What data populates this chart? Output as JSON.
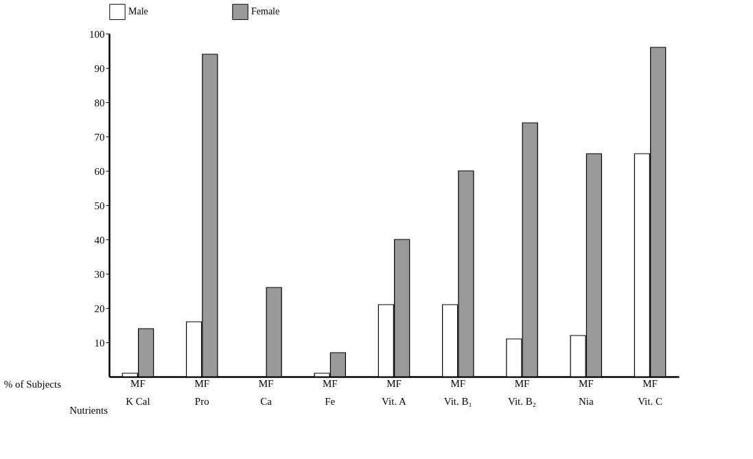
{
  "chart_data": {
    "type": "bar",
    "ylabel": "% of Subjects",
    "xlabel": "Nutrients",
    "categories": [
      "MF\nK Cal",
      "MF\nPro",
      "MF\nCa",
      "MF\nFe",
      "MF\nVit. A",
      "MF\nVit. B₁",
      "MF\nVit. B₂",
      "MF\nNia",
      "MF\nVit. C"
    ],
    "series": [
      {
        "name": "Male",
        "color": "#ffffff",
        "values": [
          1,
          16,
          null,
          1,
          21,
          21,
          11,
          12,
          65
        ]
      },
      {
        "name": "Female",
        "color": "#9a9a9a",
        "values": [
          14,
          94,
          26,
          7,
          40,
          60,
          74,
          65,
          96
        ]
      }
    ],
    "ylim": [
      0,
      100
    ],
    "yticks": [
      10,
      20,
      30,
      40,
      50,
      60,
      70,
      80,
      90,
      100
    ],
    "grid": false,
    "legend": "top"
  }
}
